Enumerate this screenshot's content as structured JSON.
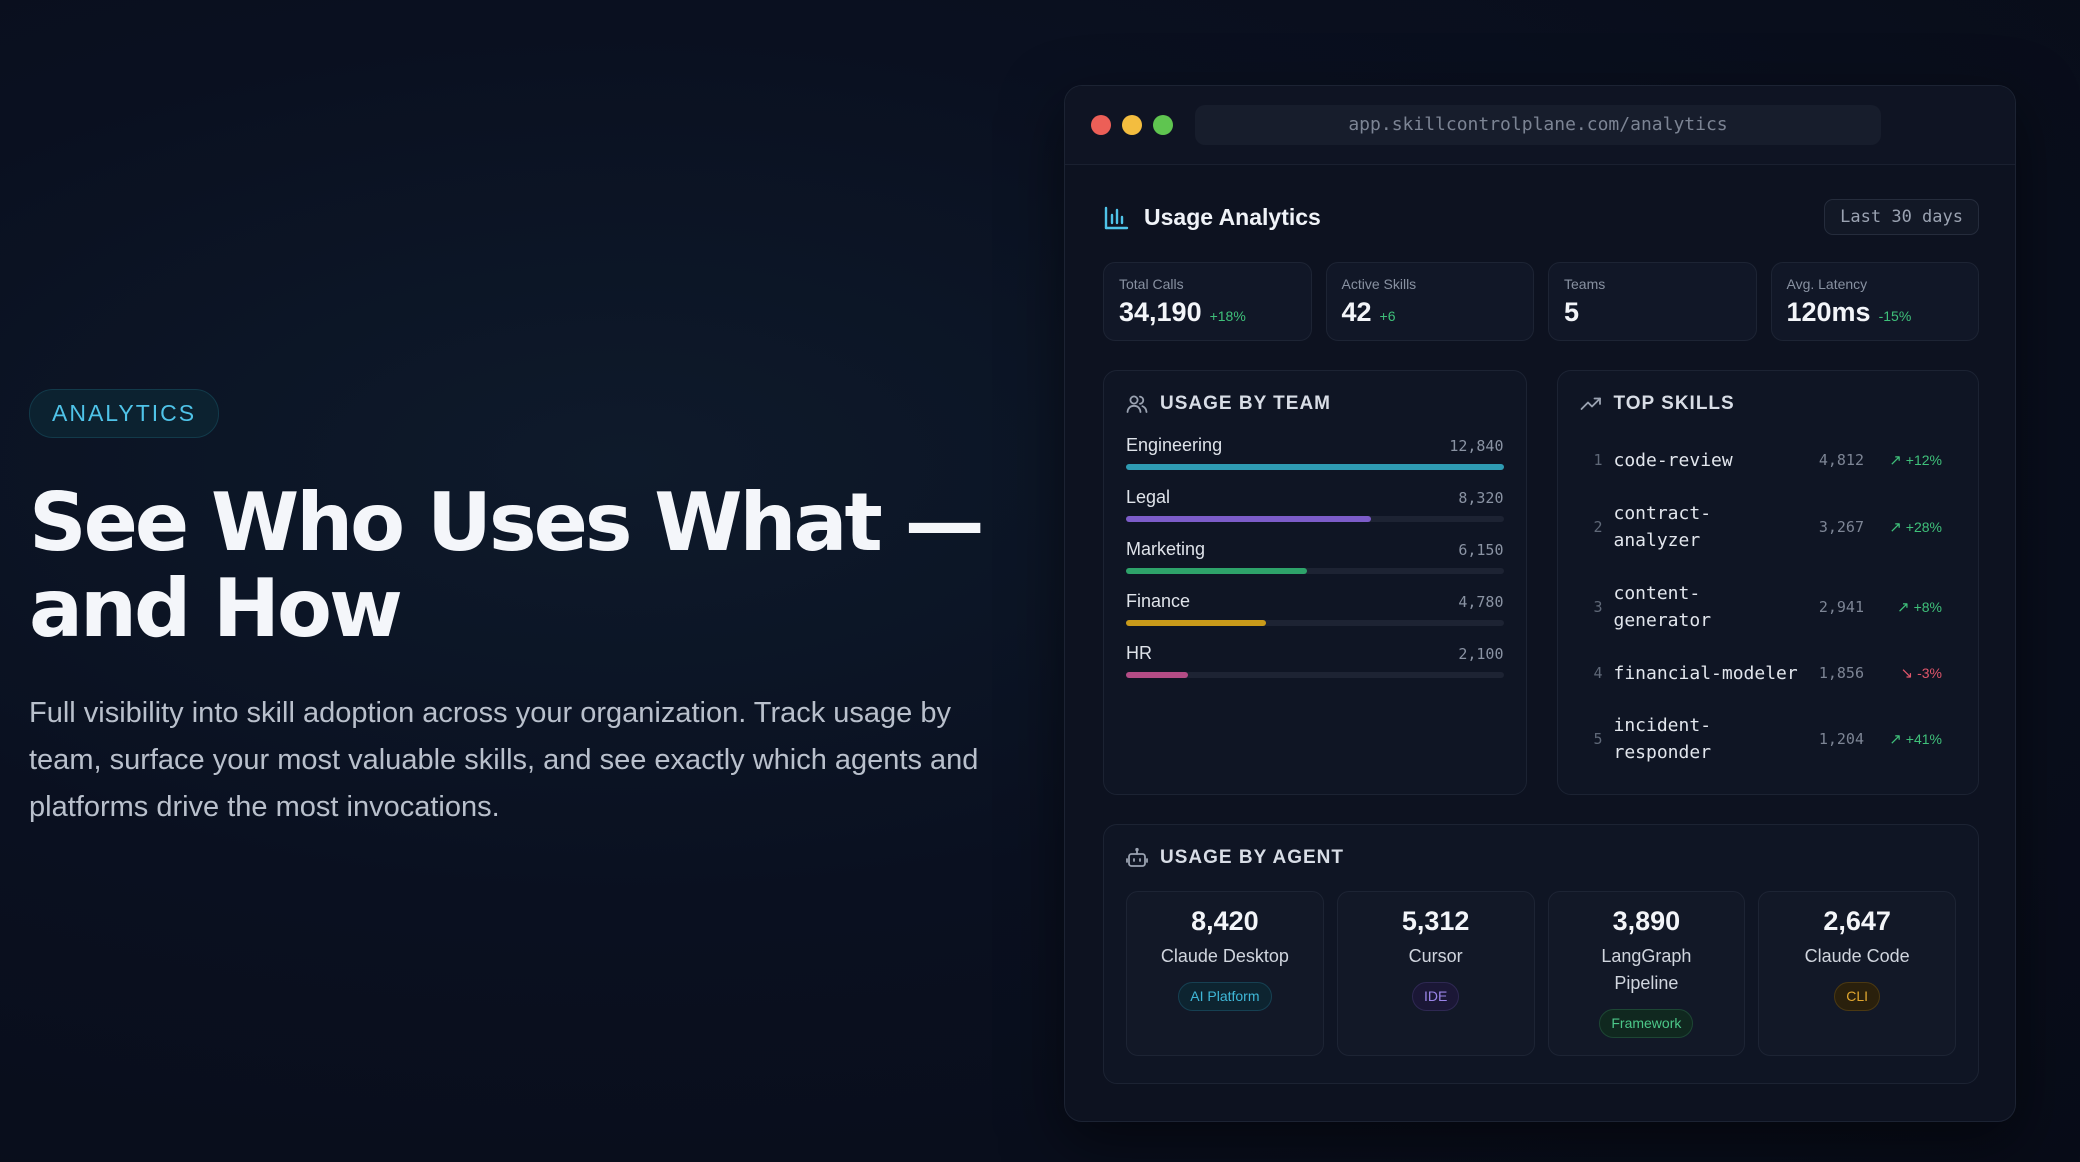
{
  "hero": {
    "badge": "ANALYTICS",
    "title_line1": "See Who Uses What —",
    "title_line2": "and How",
    "description": "Full visibility into skill adoption across your organization. Track usage by team, surface your most valuable skills, and see exactly which agents and platforms drive the most invocations."
  },
  "browser": {
    "url": "app.skillcontrolplane.com/analytics"
  },
  "app": {
    "title": "Usage Analytics",
    "range_label": "Last 30 days",
    "stats": [
      {
        "label": "Total Calls",
        "value": "34,190",
        "delta": "+18%"
      },
      {
        "label": "Active Skills",
        "value": "42",
        "delta": "+6"
      },
      {
        "label": "Teams",
        "value": "5",
        "delta": ""
      },
      {
        "label": "Avg. Latency",
        "value": "120ms",
        "delta": "-15%"
      }
    ],
    "usage_by_team": {
      "title": "USAGE BY TEAM",
      "teams": [
        {
          "name": "Engineering",
          "value": "12,840",
          "share": 1.0,
          "color": "#2e9bb3"
        },
        {
          "name": "Legal",
          "value": "8,320",
          "share": 0.648,
          "color": "#7c5cc9"
        },
        {
          "name": "Marketing",
          "value": "6,150",
          "share": 0.479,
          "color": "#2ea36a"
        },
        {
          "name": "Finance",
          "value": "4,780",
          "share": 0.372,
          "color": "#c99a1a"
        },
        {
          "name": "HR",
          "value": "2,100",
          "share": 0.164,
          "color": "#b44c86"
        }
      ]
    },
    "top_skills": {
      "title": "TOP SKILLS",
      "skills": [
        {
          "rank": "1",
          "name": "code-review",
          "count": "4,812",
          "trend": "+12%",
          "direction": "up"
        },
        {
          "rank": "2",
          "name": "contract-analyzer",
          "name_line1": "contract-",
          "name_line2": "analyzer",
          "count": "3,267",
          "trend": "+28%",
          "direction": "up"
        },
        {
          "rank": "3",
          "name": "content-generator",
          "name_line1": "content-",
          "name_line2": "generator",
          "count": "2,941",
          "trend": "+8%",
          "direction": "up"
        },
        {
          "rank": "4",
          "name": "financial-modeler",
          "count": "1,856",
          "trend": "-3%",
          "direction": "down"
        },
        {
          "rank": "5",
          "name": "incident-responder",
          "name_line1": "incident-",
          "name_line2": "responder",
          "count": "1,204",
          "trend": "+41%",
          "direction": "up"
        }
      ]
    },
    "usage_by_agent": {
      "title": "USAGE BY AGENT",
      "agents": [
        {
          "count": "8,420",
          "name": "Claude Desktop",
          "tag": "AI Platform",
          "tag_color": "#3fb8d8",
          "tag_bg": "#0d2430",
          "tag_border": "#164052"
        },
        {
          "count": "5,312",
          "name": "Cursor",
          "tag": "IDE",
          "tag_color": "#9a84e8",
          "tag_bg": "#1b1736",
          "tag_border": "#2e2852"
        },
        {
          "count": "3,890",
          "name": "LangGraph Pipeline",
          "tag": "Framework",
          "tag_color": "#4cc789",
          "tag_bg": "#10281f",
          "tag_border": "#1d4634"
        },
        {
          "count": "2,647",
          "name": "Claude Code",
          "tag": "CLI",
          "tag_color": "#e0a62f",
          "tag_bg": "#2a200c",
          "tag_border": "#4a3812"
        }
      ]
    },
    "colors": {
      "positive": "#3fc07a",
      "negative": "#e0556a",
      "accent": "#4fc3e8"
    }
  }
}
